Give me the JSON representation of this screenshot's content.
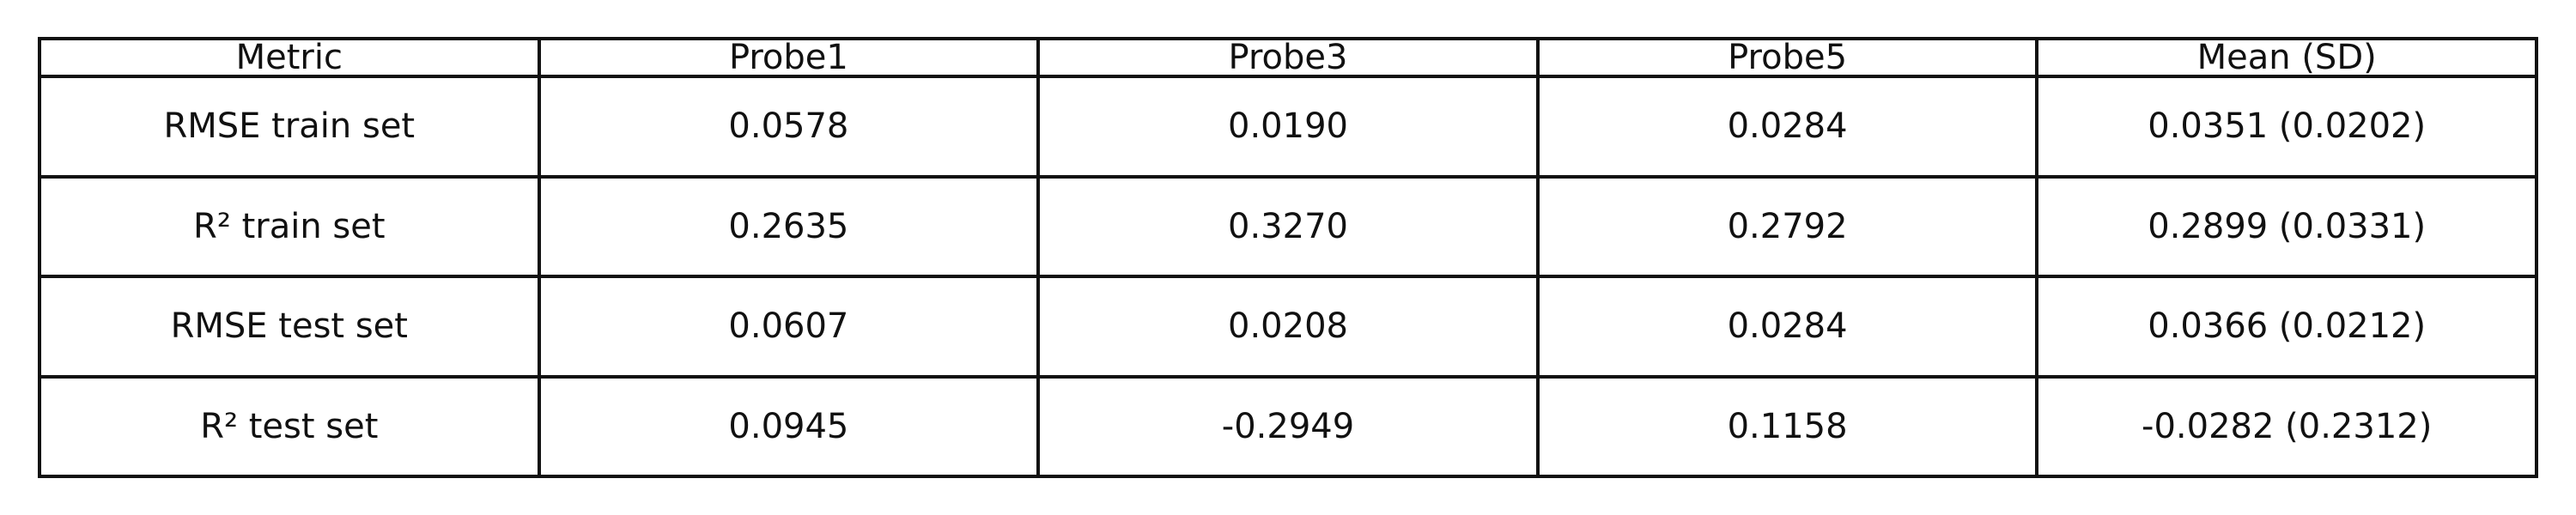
{
  "chart_data": {
    "type": "table",
    "columns": [
      "Metric",
      "Probe1",
      "Probe3",
      "Probe5",
      "Mean (SD)"
    ],
    "rows": [
      [
        "RMSE train set",
        "0.0578",
        "0.0190",
        "0.0284",
        "0.0351 (0.0202)"
      ],
      [
        "R² train set",
        "0.2635",
        "0.3270",
        "0.2792",
        "0.2899 (0.0331)"
      ],
      [
        "RMSE test set",
        "0.0607",
        "0.0208",
        "0.0284",
        "0.0366 (0.0212)"
      ],
      [
        "R² test set",
        "0.0945",
        "-0.2949",
        "0.1158",
        "-0.0282 (0.2312)"
      ]
    ]
  }
}
